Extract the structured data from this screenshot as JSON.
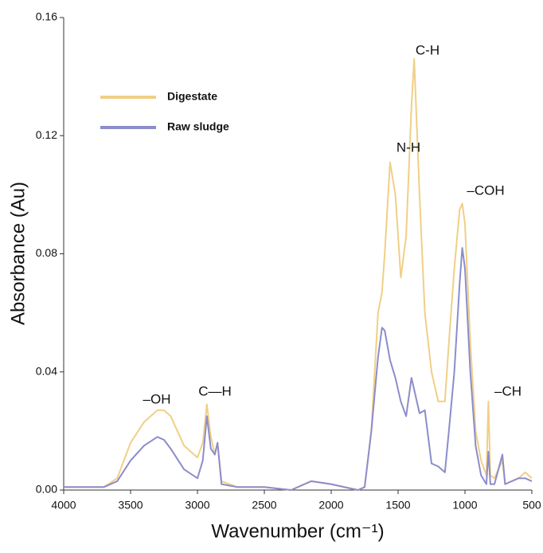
{
  "chart_data": {
    "type": "line",
    "xlabel": "Wavenumber (cm⁻¹)",
    "ylabel": "Absorbance (Au)",
    "x": [
      4000,
      3700,
      3600,
      3500,
      3400,
      3300,
      3250,
      3200,
      3100,
      3000,
      2960,
      2930,
      2900,
      2870,
      2850,
      2820,
      2700,
      2500,
      2300,
      2150,
      2000,
      1800,
      1750,
      1700,
      1650,
      1620,
      1600,
      1560,
      1520,
      1480,
      1440,
      1400,
      1380,
      1340,
      1300,
      1250,
      1200,
      1150,
      1120,
      1080,
      1040,
      1020,
      1000,
      960,
      920,
      880,
      840,
      825,
      810,
      780,
      720,
      700,
      600,
      550,
      500
    ],
    "series": [
      {
        "name": "Digestate",
        "color": "#f0cf86",
        "values": [
          0.001,
          0.001,
          0.004,
          0.016,
          0.023,
          0.027,
          0.027,
          0.025,
          0.015,
          0.011,
          0.016,
          0.029,
          0.018,
          0.012,
          0.016,
          0.003,
          0.001,
          0.001,
          0.0,
          0.003,
          0.002,
          0.0,
          0.001,
          0.02,
          0.06,
          0.067,
          0.08,
          0.111,
          0.1,
          0.072,
          0.086,
          0.13,
          0.146,
          0.1,
          0.06,
          0.04,
          0.03,
          0.03,
          0.05,
          0.075,
          0.095,
          0.097,
          0.09,
          0.05,
          0.02,
          0.01,
          0.005,
          0.03,
          0.005,
          0.004,
          0.01,
          0.002,
          0.004,
          0.006,
          0.004
        ]
      },
      {
        "name": "Raw sludge",
        "color": "#8c8ccc",
        "values": [
          0.001,
          0.001,
          0.003,
          0.01,
          0.015,
          0.018,
          0.017,
          0.014,
          0.007,
          0.004,
          0.01,
          0.025,
          0.014,
          0.012,
          0.016,
          0.002,
          0.001,
          0.001,
          0.0,
          0.003,
          0.002,
          0.0,
          0.001,
          0.02,
          0.045,
          0.055,
          0.054,
          0.044,
          0.038,
          0.03,
          0.025,
          0.038,
          0.034,
          0.026,
          0.027,
          0.009,
          0.008,
          0.006,
          0.02,
          0.04,
          0.07,
          0.082,
          0.075,
          0.04,
          0.015,
          0.005,
          0.002,
          0.013,
          0.002,
          0.002,
          0.012,
          0.002,
          0.004,
          0.004,
          0.003
        ]
      }
    ],
    "xlim": [
      4000,
      500
    ],
    "xticks": [
      4000,
      3500,
      3000,
      2500,
      2000,
      1500,
      1000,
      500
    ],
    "ylim": [
      0,
      0.16
    ],
    "yticks": [
      {
        "value": 0,
        "label": "0.00"
      },
      0.04,
      0.08,
      0.12,
      0.16
    ],
    "legend": "upper left",
    "annotations": [
      "–OH",
      "C—H",
      "N-H",
      "C-H",
      "–COH",
      "–CH"
    ]
  }
}
